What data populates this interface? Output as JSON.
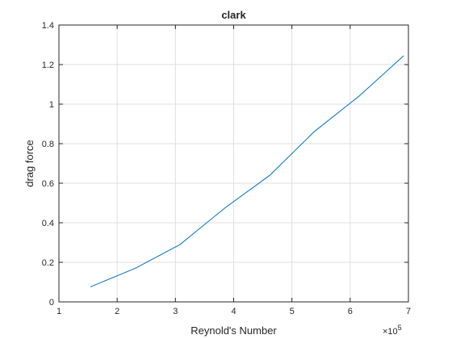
{
  "chart_data": {
    "type": "line",
    "title": "clark",
    "xlabel": "Reynold's Number",
    "ylabel": "drag force",
    "x_exponent_base": "×10",
    "x_exponent_power": "5",
    "xlim": [
      1,
      7
    ],
    "ylim": [
      0,
      1.4
    ],
    "xticks": [
      1,
      2,
      3,
      4,
      5,
      6,
      7
    ],
    "xtick_labels": [
      "1",
      "2",
      "3",
      "4",
      "5",
      "6",
      "7"
    ],
    "yticks": [
      0,
      0.2,
      0.4,
      0.6,
      0.8,
      1.0,
      1.2,
      1.4
    ],
    "ytick_labels": [
      "0",
      "0.2",
      "0.4",
      "0.6",
      "0.8",
      "1",
      "1.2",
      "1.4"
    ],
    "grid": true,
    "box": true,
    "series": [
      {
        "color": "#0072bd",
        "x": [
          1.54,
          2.31,
          3.08,
          3.85,
          4.62,
          5.38,
          6.15,
          6.92
        ],
        "y": [
          0.076,
          0.17,
          0.29,
          0.475,
          0.64,
          0.86,
          1.04,
          1.245
        ]
      }
    ]
  }
}
